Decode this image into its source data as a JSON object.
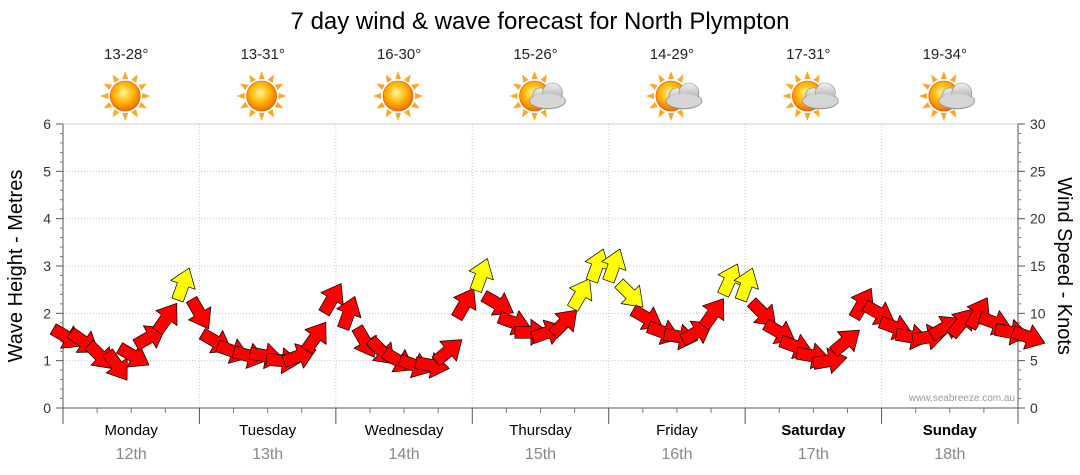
{
  "chart_data": {
    "type": "line",
    "title": "7 day wind & wave forecast for North Plympton",
    "ylabel_left": "Wave Height - Metres",
    "ylabel_right": "Wind Speed - Knots",
    "ylim_left": [
      0,
      6
    ],
    "ylim_right": [
      0,
      30
    ],
    "yticks_left": [
      "0",
      "1",
      "2",
      "3",
      "4",
      "5",
      "6"
    ],
    "yticks_right": [
      "0",
      "5",
      "10",
      "15",
      "20",
      "25",
      "30"
    ],
    "grid": true,
    "watermark": "www.seabreeze.com.au",
    "days": [
      {
        "day": "Monday",
        "date": "12th",
        "temps": "13-28°",
        "weather": "sunny",
        "bold": false
      },
      {
        "day": "Tuesday",
        "date": "13th",
        "temps": "13-31°",
        "weather": "sunny",
        "bold": false
      },
      {
        "day": "Wednesday",
        "date": "14th",
        "temps": "16-30°",
        "weather": "sunny",
        "bold": false
      },
      {
        "day": "Thursday",
        "date": "15th",
        "temps": "15-26°",
        "weather": "partly-cloudy",
        "bold": false
      },
      {
        "day": "Friday",
        "date": "16th",
        "temps": "14-29°",
        "weather": "partly-cloudy",
        "bold": false
      },
      {
        "day": "Saturday",
        "date": "17th",
        "temps": "17-31°",
        "weather": "partly-cloudy",
        "bold": true
      },
      {
        "day": "Sunday",
        "date": "18th",
        "temps": "19-34°",
        "weather": "partly-cloudy",
        "bold": true
      }
    ],
    "series": [
      {
        "name": "Wind Speed",
        "unit": "knots",
        "values": [
          7.5,
          7.0,
          5.5,
          4.5,
          5.5,
          7.5,
          9.5,
          13.0,
          10.0,
          7.0,
          6.0,
          5.5,
          5.5,
          5.0,
          5.5,
          7.5,
          11.5,
          10.0,
          7.0,
          6.0,
          5.0,
          4.5,
          4.5,
          6.0,
          11.0,
          14.0,
          11.0,
          9.0,
          8.0,
          8.0,
          9.0,
          12.0,
          15.0,
          15.0,
          12.0,
          9.5,
          8.0,
          7.5,
          8.0,
          10.0,
          13.5,
          13.0,
          10.0,
          8.0,
          6.5,
          5.5,
          5.0,
          7.0,
          11.0,
          10.0,
          8.5,
          7.5,
          7.5,
          8.5,
          9.0,
          10.0,
          9.0,
          8.0,
          7.5
        ],
        "direction_deg": [
          300,
          305,
          315,
          325,
          300,
          240,
          215,
          200,
          330,
          300,
          290,
          285,
          280,
          275,
          250,
          215,
          210,
          200,
          330,
          315,
          300,
          290,
          280,
          230,
          210,
          200,
          300,
          290,
          270,
          250,
          225,
          210,
          200,
          200,
          315,
          300,
          290,
          280,
          240,
          215,
          205,
          200,
          315,
          300,
          290,
          280,
          260,
          230,
          210,
          300,
          290,
          280,
          260,
          240,
          220,
          210,
          290,
          280,
          290
        ],
        "colors": [
          "#ff0000",
          "#ffff00"
        ],
        "color_threshold_knots": 12
      }
    ]
  }
}
